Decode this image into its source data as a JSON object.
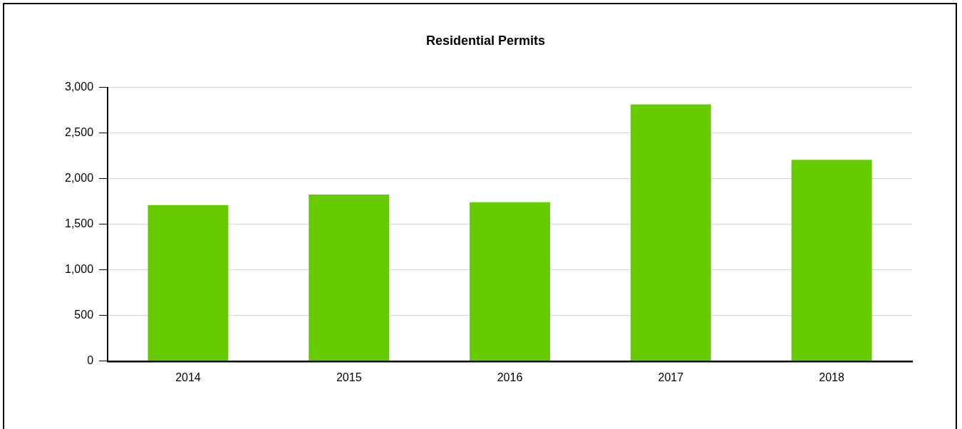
{
  "chart_data": {
    "type": "bar",
    "title": "Residential Permits",
    "categories": [
      "2014",
      "2015",
      "2016",
      "2017",
      "2018"
    ],
    "values": [
      1710,
      1826,
      1741,
      2813,
      2207
    ],
    "color": "#66cc00",
    "ylim": [
      0,
      3000
    ],
    "yticks": [
      {
        "value": 0,
        "label": "0"
      },
      {
        "value": 500,
        "label": "500"
      },
      {
        "value": 1000,
        "label": "1,000"
      },
      {
        "value": 1500,
        "label": "1,500"
      },
      {
        "value": 2000,
        "label": "2,000"
      },
      {
        "value": 2500,
        "label": "2,500"
      },
      {
        "value": 3000,
        "label": "3,000"
      }
    ],
    "grid": "y",
    "legend": false
  }
}
